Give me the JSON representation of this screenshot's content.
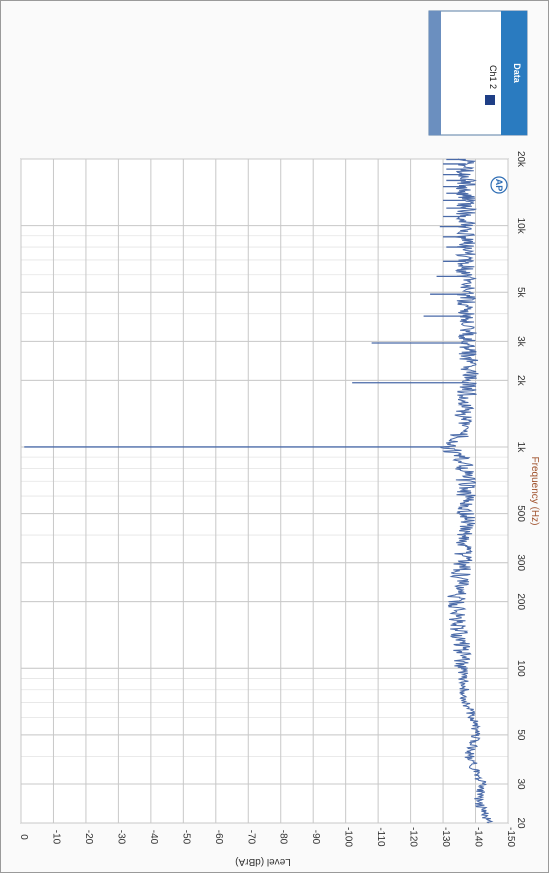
{
  "chart_data": {
    "type": "line",
    "orientation": "rotated-90-clockwise",
    "xlabel": "Frequency (Hz)",
    "ylabel": "Level (dBrA)",
    "x_scale": "log",
    "xlim": [
      20,
      20000
    ],
    "ylim": [
      -150,
      0
    ],
    "x_ticks": [
      {
        "value": 20,
        "label": "20"
      },
      {
        "value": 30,
        "label": "30"
      },
      {
        "value": 50,
        "label": "50"
      },
      {
        "value": 100,
        "label": "100"
      },
      {
        "value": 200,
        "label": "200"
      },
      {
        "value": 300,
        "label": "300"
      },
      {
        "value": 500,
        "label": "500"
      },
      {
        "value": 1000,
        "label": "1k"
      },
      {
        "value": 2000,
        "label": "2k"
      },
      {
        "value": 3000,
        "label": "3k"
      },
      {
        "value": 5000,
        "label": "5k"
      },
      {
        "value": 10000,
        "label": "10k"
      },
      {
        "value": 20000,
        "label": "20k"
      }
    ],
    "y_ticks": [
      {
        "value": 0,
        "label": "0"
      },
      {
        "value": -10,
        "label": "-10"
      },
      {
        "value": -20,
        "label": "-20"
      },
      {
        "value": -30,
        "label": "-30"
      },
      {
        "value": -40,
        "label": "-40"
      },
      {
        "value": -50,
        "label": "-50"
      },
      {
        "value": -60,
        "label": "-60"
      },
      {
        "value": -70,
        "label": "-70"
      },
      {
        "value": -80,
        "label": "-80"
      },
      {
        "value": -90,
        "label": "-90"
      },
      {
        "value": -100,
        "label": "-100"
      },
      {
        "value": -110,
        "label": "-110"
      },
      {
        "value": -120,
        "label": "-120"
      },
      {
        "value": -130,
        "label": "-130"
      },
      {
        "value": -140,
        "label": "-140"
      },
      {
        "value": -150,
        "label": "-150"
      }
    ],
    "grid": true,
    "legend": {
      "title": "Data",
      "entries": [
        "Ch1 2"
      ],
      "placement": "top-right"
    },
    "series": [
      {
        "name": "Ch1 2",
        "color": "#4a6aa8",
        "noise_floor": [
          [
            20,
            -144
          ],
          [
            25,
            -141
          ],
          [
            30,
            -142
          ],
          [
            40,
            -138
          ],
          [
            50,
            -140
          ],
          [
            60,
            -139
          ],
          [
            70,
            -137
          ],
          [
            100,
            -136
          ],
          [
            150,
            -135
          ],
          [
            200,
            -134
          ],
          [
            300,
            -136
          ],
          [
            500,
            -137
          ],
          [
            700,
            -137
          ],
          [
            900,
            -136
          ],
          [
            950,
            -133
          ],
          [
            1000,
            -132
          ],
          [
            1050,
            -133
          ],
          [
            1100,
            -135
          ],
          [
            1300,
            -136
          ],
          [
            2000,
            -138
          ],
          [
            5000,
            -137
          ],
          [
            10000,
            -137
          ],
          [
            20000,
            -137
          ]
        ],
        "peaks": [
          [
            1000,
            -1
          ],
          [
            1950,
            -102
          ],
          [
            2950,
            -108
          ],
          [
            3900,
            -124
          ],
          [
            4900,
            -126
          ],
          [
            5900,
            -128
          ],
          [
            6900,
            -130
          ],
          [
            8000,
            -131
          ],
          [
            8900,
            -130
          ],
          [
            9900,
            -129
          ],
          [
            11000,
            -130
          ],
          [
            12000,
            -131
          ],
          [
            13000,
            -130
          ],
          [
            14000,
            -131
          ],
          [
            15000,
            -130
          ],
          [
            16000,
            -131
          ],
          [
            17000,
            -130
          ],
          [
            18000,
            -131
          ],
          [
            19000,
            -130
          ],
          [
            19900,
            -131
          ]
        ]
      }
    ]
  },
  "logo": "AP"
}
